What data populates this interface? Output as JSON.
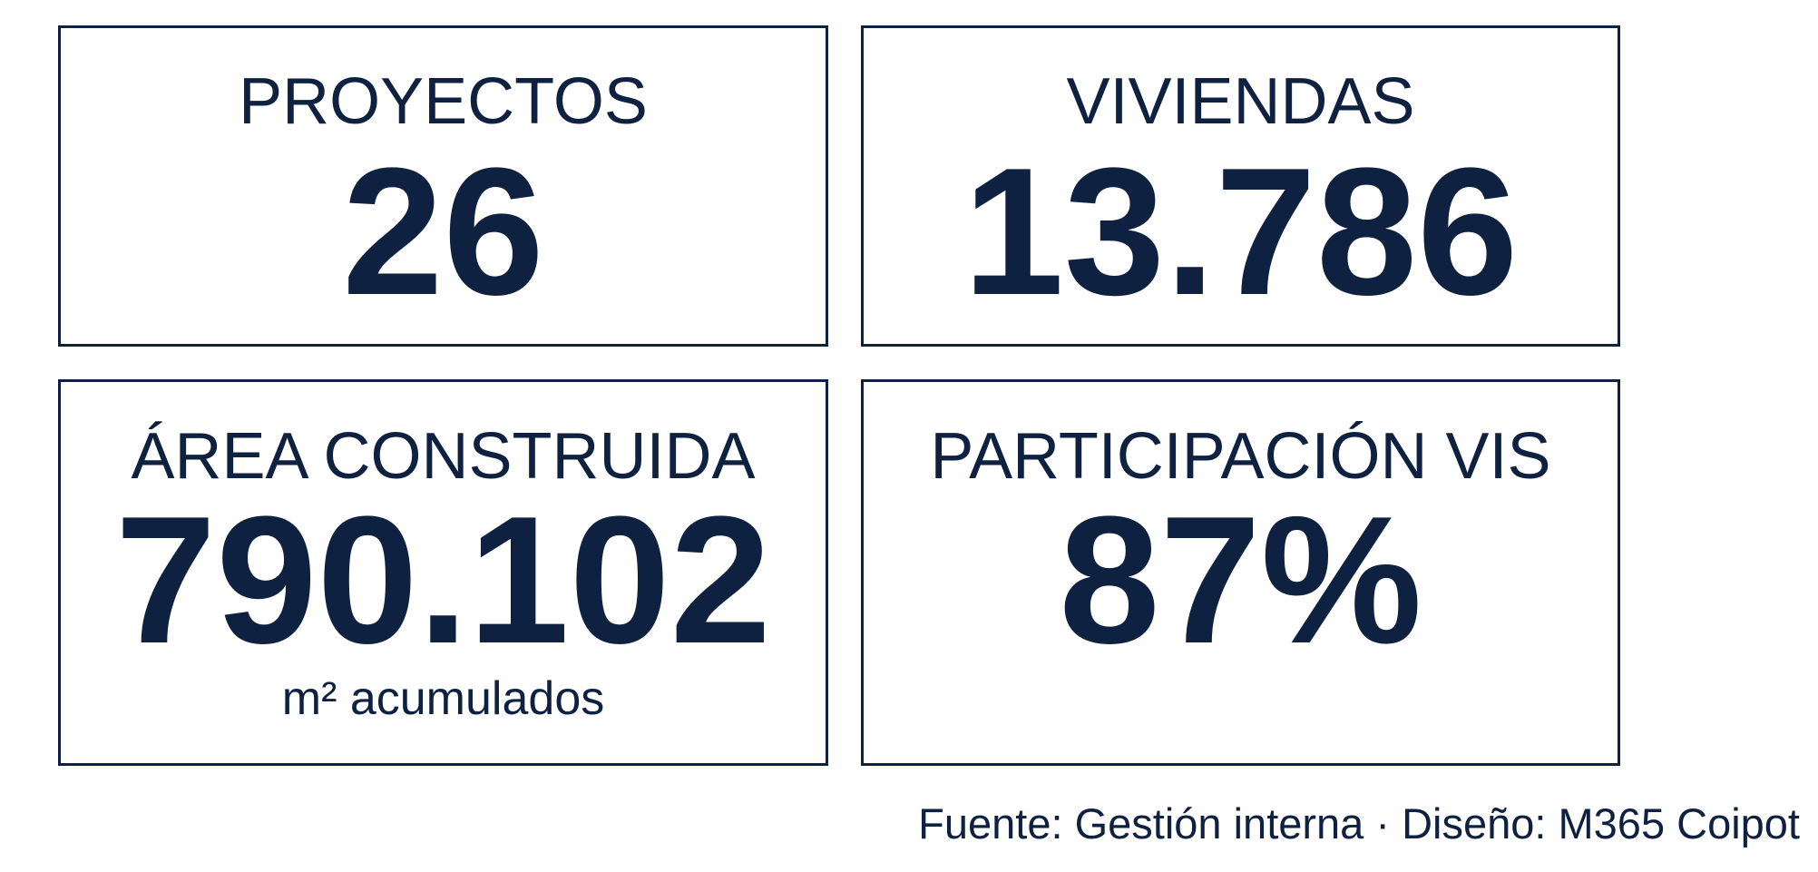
{
  "kpis": [
    {
      "label": "PROYECTOS",
      "value": "26"
    },
    {
      "label": "VIVIENDAS",
      "value": "13.786"
    },
    {
      "label": "ÁREA CONSTRUIDA",
      "value": "790.102",
      "note": "m² acumulados"
    },
    {
      "label": "PARTICIPACIÓN VIS",
      "value": "87%"
    }
  ],
  "footer": "Fuente: Gestión interna · Diseño: M365 Coipot"
}
